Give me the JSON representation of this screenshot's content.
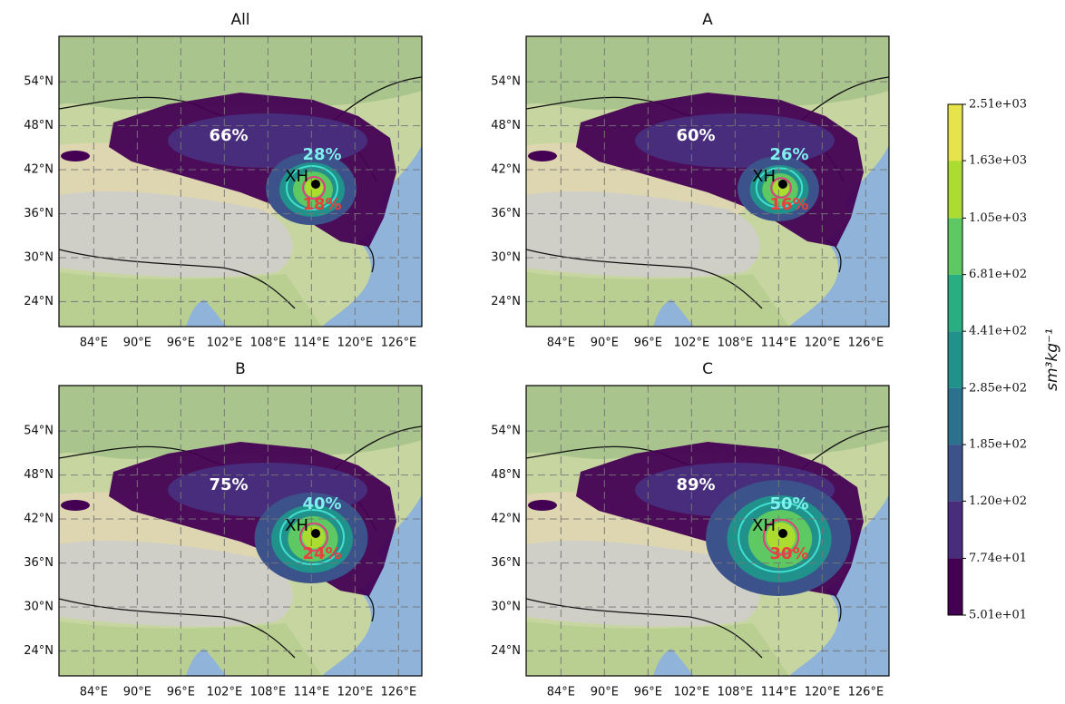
{
  "station": "XH",
  "lon_lim": [
    79.2,
    129.2
  ],
  "lat_lim": [
    20.6,
    60.2
  ],
  "lon_ticks": [
    {
      "value": 84,
      "label": "84°E"
    },
    {
      "value": 90,
      "label": "90°E"
    },
    {
      "value": 96,
      "label": "96°E"
    },
    {
      "value": 102,
      "label": "102°E"
    },
    {
      "value": 108,
      "label": "108°E"
    },
    {
      "value": 114,
      "label": "114°E"
    },
    {
      "value": 120,
      "label": "120°E"
    },
    {
      "value": 126,
      "label": "126°E"
    }
  ],
  "lat_ticks": [
    {
      "value": 54,
      "label": "54°N"
    },
    {
      "value": 48,
      "label": "48°N"
    },
    {
      "value": 42,
      "label": "42°N"
    },
    {
      "value": 36,
      "label": "36°N"
    },
    {
      "value": 30,
      "label": "30°N"
    },
    {
      "value": 24,
      "label": "24°N"
    }
  ],
  "panels": [
    {
      "title": "All",
      "labels": [
        "66%",
        "28%",
        "18%"
      ]
    },
    {
      "title": "A",
      "labels": [
        "60%",
        "26%",
        "16%"
      ]
    },
    {
      "title": "B",
      "labels": [
        "75%",
        "40%",
        "24%"
      ]
    },
    {
      "title": "C",
      "labels": [
        "89%",
        "50%",
        "30%"
      ]
    }
  ],
  "colorbar": {
    "label": "sm³kg⁻¹",
    "log_scale": true,
    "ticks": [
      {
        "value": 50.1,
        "label": "5.01e+01"
      },
      {
        "value": 77.4,
        "label": "7.74e+01"
      },
      {
        "value": 120,
        "label": "1.20e+02"
      },
      {
        "value": 185,
        "label": "1.85e+02"
      },
      {
        "value": 285,
        "label": "2.85e+02"
      },
      {
        "value": 441,
        "label": "4.41e+02"
      },
      {
        "value": 681,
        "label": "6.81e+02"
      },
      {
        "value": 1050,
        "label": "1.05e+03"
      },
      {
        "value": 1630,
        "label": "1.63e+03"
      },
      {
        "value": 2510,
        "label": "2.51e+03"
      }
    ],
    "colors": [
      "#440154",
      "#472d7b",
      "#3b528b",
      "#2c728e",
      "#21918c",
      "#28ae80",
      "#5ec962",
      "#addc30",
      "#e6e44a"
    ]
  }
}
